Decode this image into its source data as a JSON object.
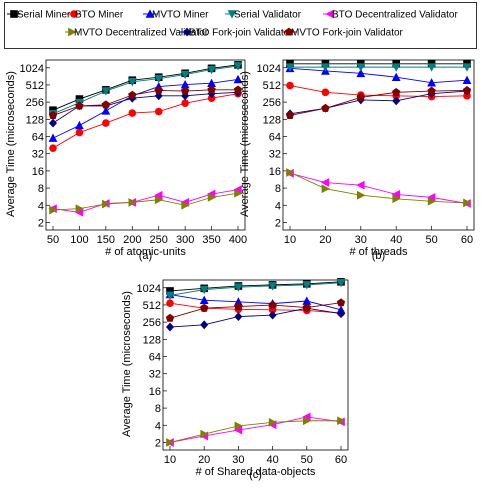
{
  "legend": [
    {
      "name": "Serial Miner",
      "color": "#000000",
      "marker": "square"
    },
    {
      "name": "BTO Miner",
      "color": "#ff0000",
      "marker": "circle"
    },
    {
      "name": "MVTO Miner",
      "color": "#0000ff",
      "marker": "triangle-up"
    },
    {
      "name": "Serial Validator",
      "color": "#008080",
      "marker": "triangle-down"
    },
    {
      "name": "BTO Decentralized Validator",
      "color": "#ff00ff",
      "marker": "triangle-left"
    },
    {
      "name": "MVTO Decentralized Validator",
      "color": "#808000",
      "marker": "triangle-right"
    },
    {
      "name": "BTO Fork-join Validator",
      "color": "#000080",
      "marker": "diamond"
    },
    {
      "name": "MVTO Fork-join Validator",
      "color": "#800000",
      "marker": "pentagon"
    }
  ],
  "chart_data": [
    {
      "type": "line",
      "caption": "(a)",
      "xlabel": "# of atomic-units",
      "ylabel": "Average Time (microseconds)",
      "yscale": "log2",
      "ylim": [
        1.6,
        1400
      ],
      "xlim": [
        50,
        400
      ],
      "x": [
        50,
        100,
        150,
        200,
        250,
        300,
        350,
        400
      ],
      "xticks": [
        "50",
        "100",
        "150",
        "200",
        "250",
        "300",
        "350",
        "400"
      ],
      "yticks": [
        "2",
        "4",
        "8",
        "16",
        "32",
        "64",
        "128",
        "256",
        "512",
        "1024"
      ],
      "grid": false,
      "series": [
        {
          "name": "Serial Miner",
          "values": [
            185,
            290,
            420,
            620,
            700,
            820,
            1000,
            1150
          ]
        },
        {
          "name": "BTO Miner",
          "values": [
            40,
            75,
            110,
            165,
            175,
            245,
            300,
            360
          ]
        },
        {
          "name": "MVTO Miner",
          "values": [
            60,
            100,
            180,
            330,
            480,
            520,
            550,
            640
          ]
        },
        {
          "name": "Serial Validator",
          "values": [
            160,
            250,
            400,
            580,
            660,
            780,
            950,
            1100
          ]
        },
        {
          "name": "BTO Decentralized Validator",
          "values": [
            3.5,
            3.0,
            4.3,
            4.5,
            6.0,
            4.5,
            6.3,
            7.5
          ]
        },
        {
          "name": "MVTO Decentralized Validator",
          "values": [
            3.3,
            3.5,
            4.2,
            4.5,
            5.0,
            4.0,
            5.5,
            6.5
          ]
        },
        {
          "name": "BTO Fork-join Validator",
          "values": [
            110,
            220,
            220,
            300,
            330,
            330,
            360,
            380
          ]
        },
        {
          "name": "MVTO Fork-join Validator",
          "values": [
            150,
            220,
            230,
            340,
            410,
            400,
            420,
            420
          ]
        }
      ]
    },
    {
      "type": "line",
      "caption": "(b)",
      "xlabel": "# of threads",
      "ylabel": "Average Time (microseconds)",
      "yscale": "log2",
      "ylim": [
        1.6,
        1400
      ],
      "xlim": [
        10,
        60
      ],
      "x": [
        10,
        20,
        30,
        40,
        50,
        60
      ],
      "xticks": [
        "10",
        "20",
        "30",
        "40",
        "50",
        "60"
      ],
      "yticks": [
        "2",
        "4",
        "8",
        "16",
        "32",
        "64",
        "128",
        "256",
        "512",
        "1024"
      ],
      "grid": false,
      "series": [
        {
          "name": "Serial Miner",
          "values": [
            1200,
            1200,
            1200,
            1200,
            1200,
            1200
          ]
        },
        {
          "name": "BTO Miner",
          "values": [
            500,
            380,
            340,
            330,
            320,
            330
          ]
        },
        {
          "name": "MVTO Miner",
          "values": [
            1000,
            900,
            820,
            700,
            560,
            620
          ]
        },
        {
          "name": "Serial Validator",
          "values": [
            1050,
            1050,
            1050,
            1050,
            1050,
            1050
          ]
        },
        {
          "name": "BTO Decentralized Validator",
          "values": [
            14.5,
            10,
            9,
            6.2,
            5.5,
            4.3
          ]
        },
        {
          "name": "MVTO Decentralized Validator",
          "values": [
            15,
            7.8,
            6,
            5.2,
            4.7,
            4.4
          ]
        },
        {
          "name": "BTO Fork-join Validator",
          "values": [
            160,
            200,
            280,
            270,
            360,
            400
          ]
        },
        {
          "name": "MVTO Fork-join Validator",
          "values": [
            150,
            200,
            310,
            380,
            400,
            410
          ]
        }
      ]
    },
    {
      "type": "line",
      "caption": "(c)",
      "xlabel": "# of Shared data-objects",
      "ylabel": "Average Time (microseconds)",
      "yscale": "log2",
      "ylim": [
        1.6,
        1400
      ],
      "xlim": [
        10,
        60
      ],
      "x": [
        10,
        20,
        30,
        40,
        50,
        60
      ],
      "xticks": [
        "10",
        "20",
        "30",
        "40",
        "50",
        "60"
      ],
      "yticks": [
        "2",
        "4",
        "8",
        "16",
        "32",
        "64",
        "128",
        "256",
        "512",
        "1024"
      ],
      "grid": false,
      "series": [
        {
          "name": "Serial Miner",
          "values": [
            900,
            1000,
            1100,
            1150,
            1200,
            1300
          ]
        },
        {
          "name": "BTO Miner",
          "values": [
            550,
            450,
            430,
            420,
            410,
            370
          ]
        },
        {
          "name": "MVTO Miner",
          "values": [
            780,
            620,
            580,
            540,
            600,
            420
          ]
        },
        {
          "name": "Serial Validator",
          "values": [
            750,
            950,
            1050,
            1100,
            1150,
            1250
          ]
        },
        {
          "name": "BTO Decentralized Validator",
          "values": [
            2,
            2.6,
            3.3,
            4.1,
            5.6,
            4.6
          ]
        },
        {
          "name": "MVTO Decentralized Validator",
          "values": [
            2,
            2.8,
            3.9,
            4.5,
            4.8,
            4.8
          ]
        },
        {
          "name": "BTO Fork-join Validator",
          "values": [
            210,
            230,
            320,
            340,
            450,
            360
          ]
        },
        {
          "name": "MVTO Fork-join Validator",
          "values": [
            300,
            450,
            480,
            510,
            460,
            560
          ]
        }
      ]
    }
  ]
}
